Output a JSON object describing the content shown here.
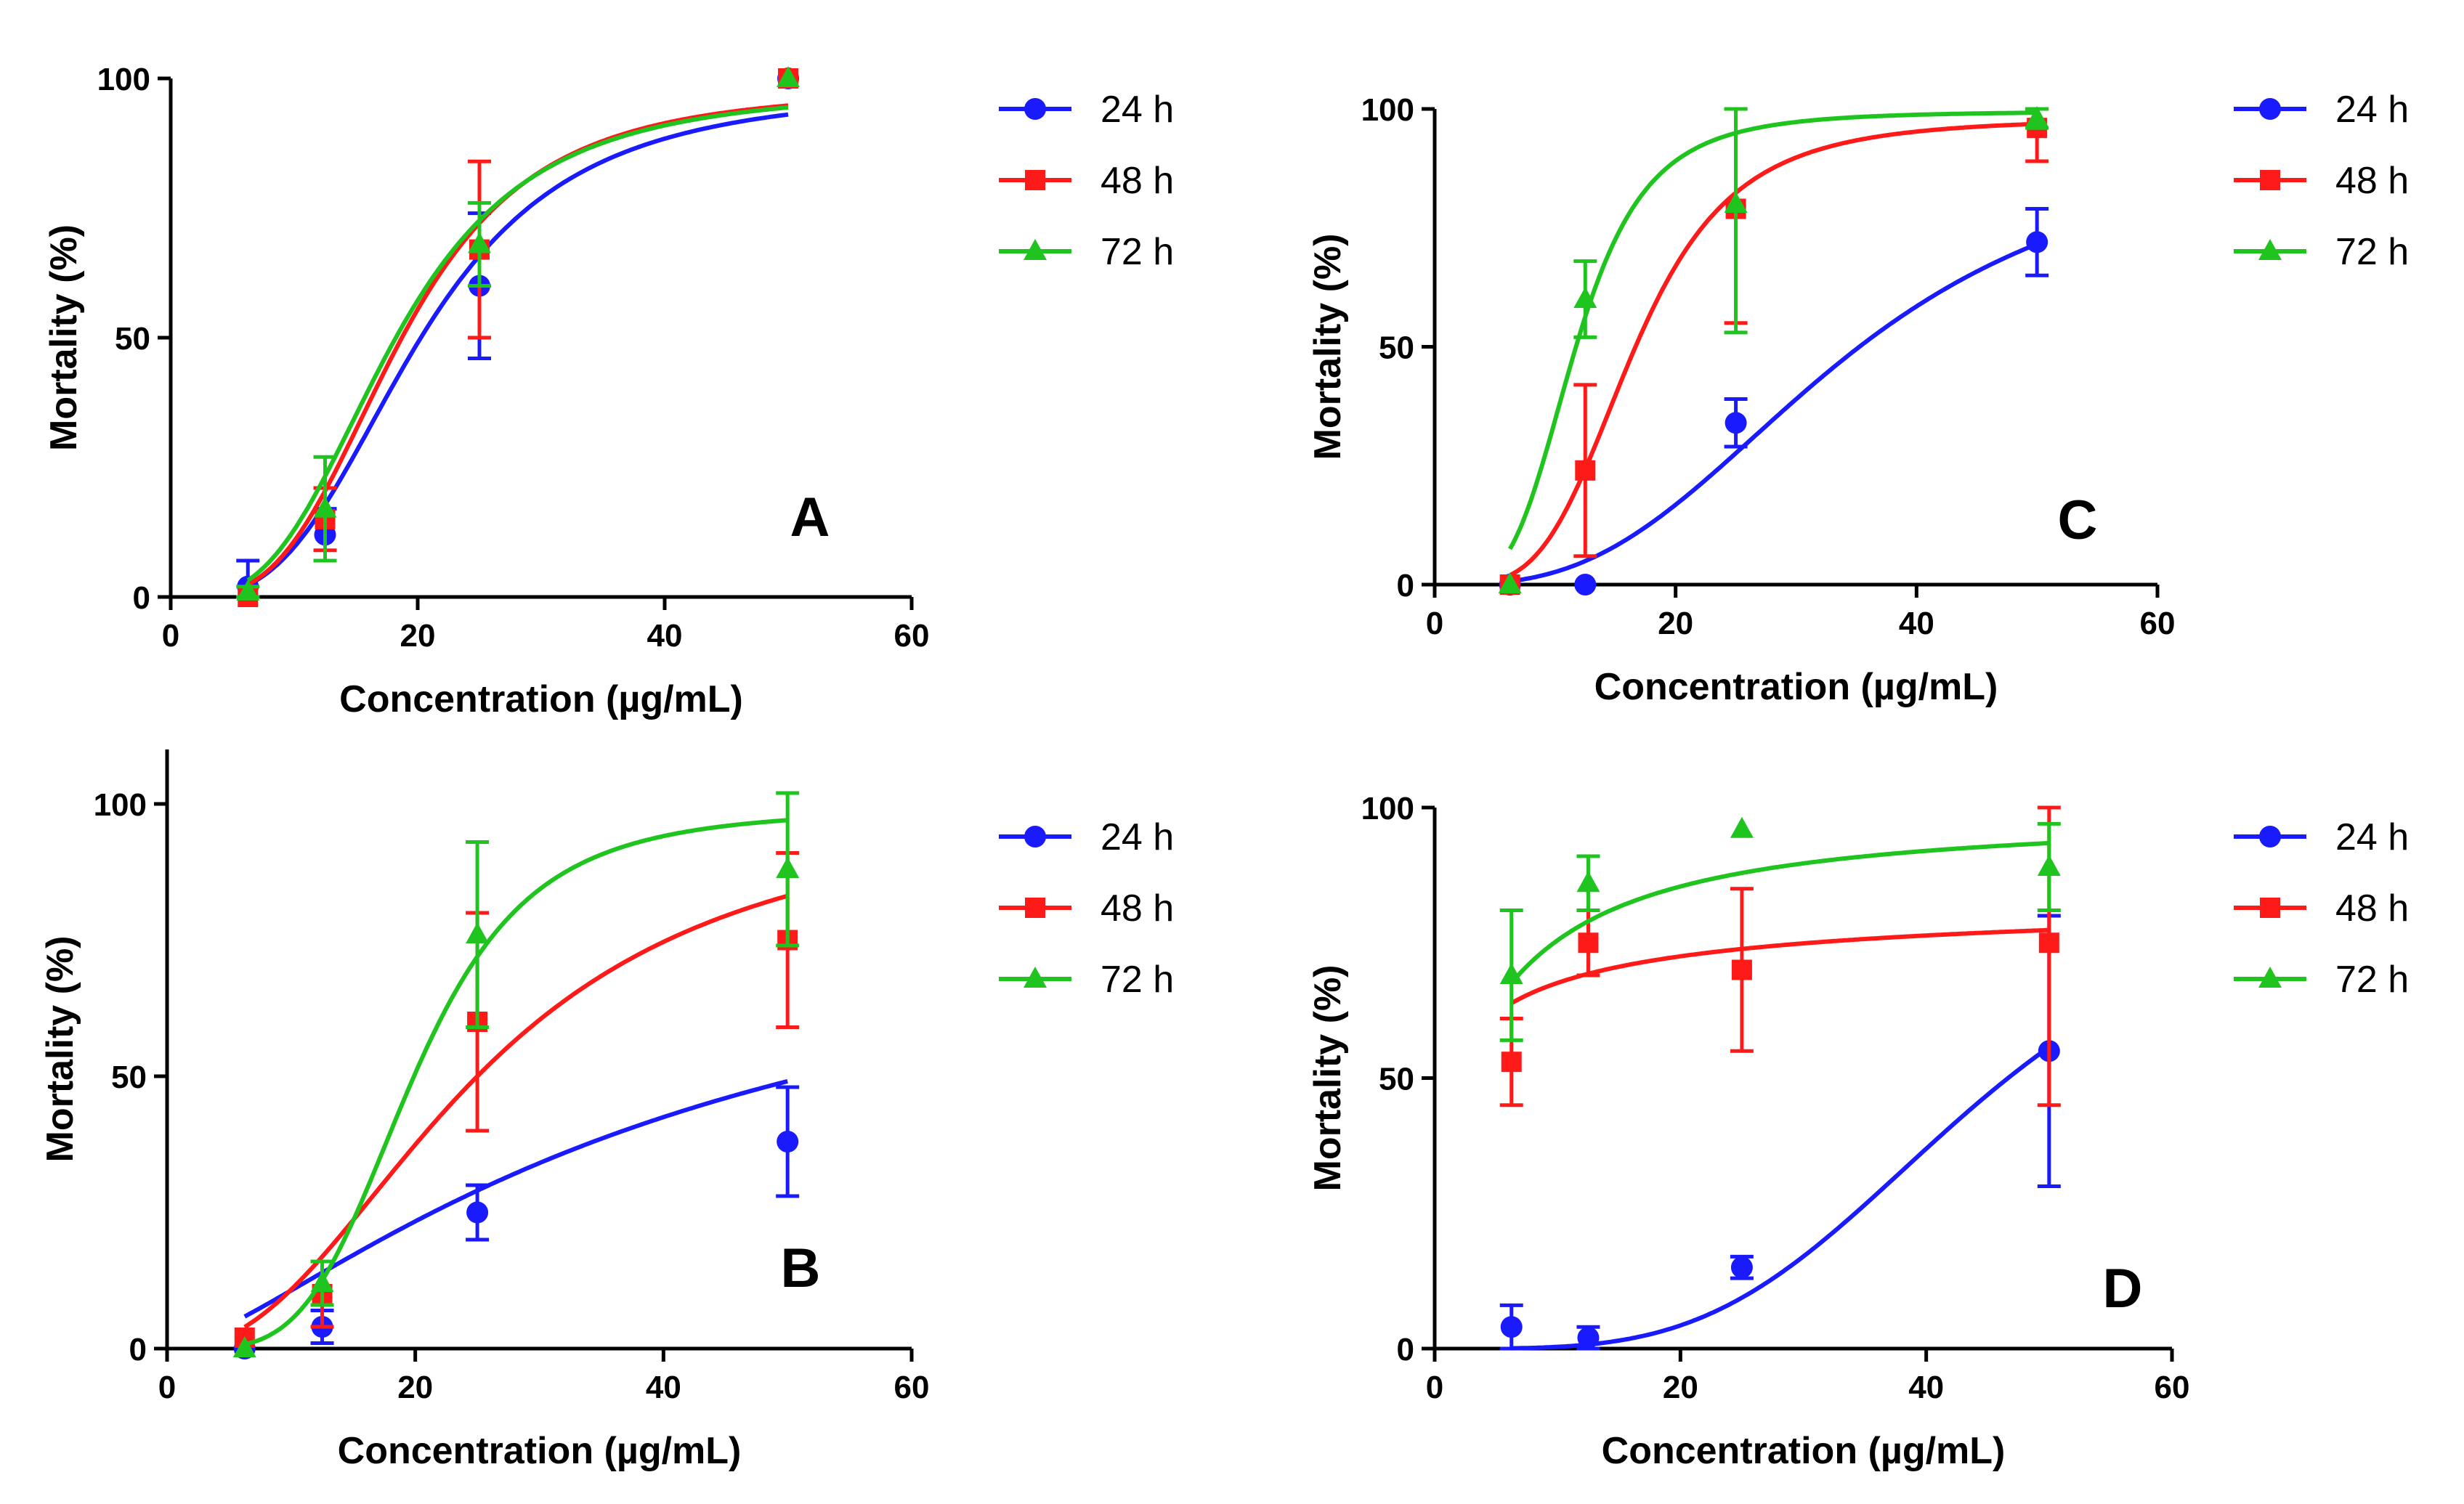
{
  "chart_data": [
    {
      "type": "scatter",
      "panel_label": "A",
      "xlabel": "Concentration (µg/mL)",
      "ylabel": "Mortality (%)",
      "xlim": [
        0,
        60
      ],
      "ylim": [
        0,
        100
      ],
      "x_ticks": [
        0,
        20,
        40,
        60
      ],
      "y_ticks": [
        0,
        50,
        100
      ],
      "legend_placement": "right",
      "series": [
        {
          "name": "24 h",
          "color": "#1a1aff",
          "marker": "circle",
          "x": [
            6.25,
            12.5,
            25,
            50
          ],
          "y": [
            2,
            12,
            60,
            100
          ],
          "err": [
            5,
            5,
            14,
            0
          ],
          "curve": {
            "ec50": 20.0,
            "hill": 3.2,
            "top": 98,
            "bottom": 0
          }
        },
        {
          "name": "48 h",
          "color": "#ff1a1a",
          "marker": "square",
          "x": [
            6.25,
            12.5,
            25,
            50
          ],
          "y": [
            0,
            15,
            67,
            100
          ],
          "err": [
            0,
            6,
            17,
            0
          ],
          "curve": {
            "ec50": 18.5,
            "hill": 3.4,
            "top": 98,
            "bottom": 0
          }
        },
        {
          "name": "72 h",
          "color": "#1fc41f",
          "marker": "triangle",
          "x": [
            6.25,
            12.5,
            25,
            50
          ],
          "y": [
            1,
            17,
            68,
            100
          ],
          "err": [
            1,
            10,
            8,
            0
          ],
          "curve": {
            "ec50": 18.0,
            "hill": 3.2,
            "top": 98,
            "bottom": 0
          }
        }
      ]
    },
    {
      "type": "scatter",
      "panel_label": "C",
      "xlabel": "Concentration (µg/mL)",
      "ylabel": "Mortality (%)",
      "xlim": [
        0,
        60
      ],
      "ylim": [
        0,
        100
      ],
      "x_ticks": [
        0,
        20,
        40,
        60
      ],
      "y_ticks": [
        0,
        50,
        100
      ],
      "legend_placement": "right",
      "series": [
        {
          "name": "24 h",
          "color": "#1a1aff",
          "marker": "circle",
          "x": [
            6.25,
            12.5,
            25,
            50
          ],
          "y": [
            0,
            0,
            34,
            72
          ],
          "err": [
            0,
            0,
            5,
            7
          ],
          "curve": {
            "ec50": 34.0,
            "hill": 2.9,
            "top": 95,
            "bottom": 0
          }
        },
        {
          "name": "48 h",
          "color": "#ff1a1a",
          "marker": "square",
          "x": [
            6.25,
            12.5,
            25,
            50
          ],
          "y": [
            0,
            24,
            79,
            96
          ],
          "err": [
            0,
            18,
            24,
            7
          ],
          "curve": {
            "ec50": 16.5,
            "hill": 4.0,
            "top": 98,
            "bottom": 0
          }
        },
        {
          "name": "72 h",
          "color": "#1fc41f",
          "marker": "triangle",
          "x": [
            6.25,
            12.5,
            25,
            50
          ],
          "y": [
            0,
            60,
            80,
            98
          ],
          "err": [
            0,
            8,
            27,
            2
          ],
          "curve": {
            "ec50": 11.7,
            "hill": 4.0,
            "top": 99.5,
            "bottom": 0
          }
        }
      ]
    },
    {
      "type": "scatter",
      "panel_label": "B",
      "xlabel": "Concentration (µg/mL)",
      "ylabel": "Mortality (%)",
      "xlim": [
        0,
        60
      ],
      "ylim": [
        0,
        110
      ],
      "x_ticks": [
        0,
        20,
        40,
        60
      ],
      "y_ticks": [
        0,
        50,
        100
      ],
      "legend_placement": "right",
      "series": [
        {
          "name": "24 h",
          "color": "#1a1aff",
          "marker": "circle",
          "x": [
            6.25,
            12.5,
            25,
            50
          ],
          "y": [
            0,
            4,
            25,
            38
          ],
          "err": [
            0,
            3,
            5,
            10
          ],
          "curve": {
            "ec50": 40.0,
            "hill": 1.4,
            "top": 85,
            "bottom": 0
          }
        },
        {
          "name": "48 h",
          "color": "#ff1a1a",
          "marker": "square",
          "x": [
            6.25,
            12.5,
            25,
            50
          ],
          "y": [
            2,
            10,
            60,
            75
          ],
          "err": [
            0,
            6,
            20,
            16
          ],
          "curve": {
            "ec50": 25.0,
            "hill": 2.3,
            "top": 100,
            "bottom": 0
          }
        },
        {
          "name": "72 h",
          "color": "#1fc41f",
          "marker": "triangle",
          "x": [
            6.25,
            12.5,
            25,
            50
          ],
          "y": [
            0,
            12,
            76,
            88
          ],
          "err": [
            0,
            4,
            17,
            14
          ],
          "curve": {
            "ec50": 19.8,
            "hill": 4.2,
            "top": 99,
            "bottom": 0
          }
        }
      ]
    },
    {
      "type": "scatter",
      "panel_label": "D",
      "xlabel": "Concentration (µg/mL)",
      "ylabel": "Mortality (%)",
      "xlim": [
        0,
        60
      ],
      "ylim": [
        0,
        100
      ],
      "x_ticks": [
        0,
        20,
        40,
        60
      ],
      "y_ticks": [
        0,
        50,
        100
      ],
      "legend_placement": "right",
      "series": [
        {
          "name": "24 h",
          "color": "#1a1aff",
          "marker": "circle",
          "x": [
            6.25,
            12.5,
            25,
            50
          ],
          "y": [
            4,
            2,
            15,
            55
          ],
          "err": [
            4,
            2,
            2,
            25
          ],
          "curve": {
            "ec50": 44.0,
            "hill": 3.8,
            "top": 90,
            "bottom": 0
          }
        },
        {
          "name": "48 h",
          "color": "#ff1a1a",
          "marker": "square",
          "x": [
            6.25,
            12.5,
            25,
            50
          ],
          "y": [
            53,
            75,
            70,
            75
          ],
          "err": [
            8,
            6,
            15,
            30
          ],
          "curve": {
            "ec50": 5.0,
            "hill": 0.75,
            "top": 84,
            "bottom": 40
          }
        },
        {
          "name": "72 h",
          "color": "#1fc41f",
          "marker": "triangle",
          "x": [
            6.25,
            12.5,
            25,
            50
          ],
          "y": [
            69,
            86,
            96,
            89
          ],
          "err": [
            12,
            5,
            0,
            8
          ],
          "curve": {
            "ec50": 7.0,
            "hill": 1.15,
            "top": 99,
            "bottom": 40
          }
        }
      ]
    }
  ]
}
